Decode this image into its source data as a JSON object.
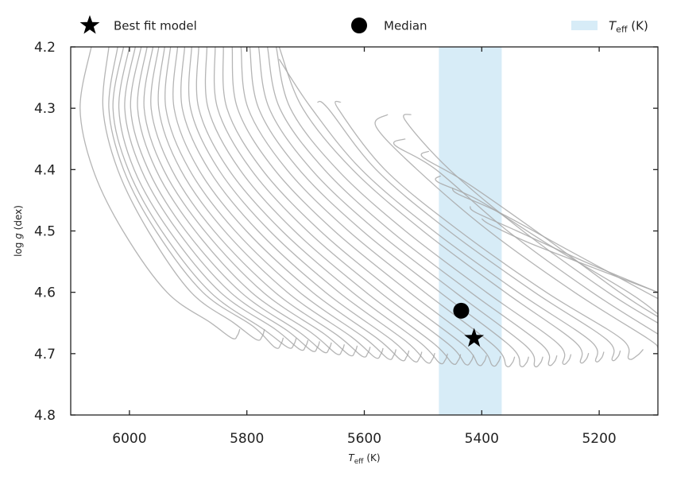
{
  "chart_data": {
    "type": "line",
    "xlabel_base": "T",
    "xlabel_sub": "eff",
    "xlabel_unit": "(K)",
    "ylabel": "log g (dex)",
    "ylabel_pre": "log ",
    "ylabel_var": "g",
    "ylabel_unit": " (dex)",
    "xlim": [
      6100,
      5100
    ],
    "ylim": [
      4.8,
      4.2
    ],
    "x_ticks": [
      6000,
      5800,
      5600,
      5400,
      5200
    ],
    "y_ticks": [
      4.2,
      4.3,
      4.4,
      4.5,
      4.6,
      4.7,
      4.8
    ],
    "x_tick_labels": [
      "6000",
      "5800",
      "5600",
      "5400",
      "5200"
    ],
    "y_tick_labels": [
      "4.2",
      "4.3",
      "4.4",
      "4.5",
      "4.6",
      "4.7",
      "4.8"
    ],
    "teff_band": [
      5473,
      5366
    ],
    "best_fit": {
      "x": 5413,
      "y": 4.675
    },
    "median": {
      "x": 5435,
      "y": 4.63
    },
    "legend": {
      "best_fit_label": "Best fit model",
      "median_label": "Median",
      "band_label_base": "T",
      "band_label_sub": "eff",
      "band_label_unit": "(K)",
      "placement": "top"
    },
    "tracks": [
      {
        "x": [
          6065,
          6084,
          6062,
          6011,
          5936,
          5861,
          5825,
          5816,
          5812
        ],
        "y": [
          4.2,
          4.3,
          4.4,
          4.5,
          4.6,
          4.65,
          4.675,
          4.67,
          4.66
        ]
      },
      {
        "x": [
          6035,
          6045,
          6020,
          5968,
          5895,
          5822,
          5784,
          5774,
          5770
        ],
        "y": [
          4.2,
          4.3,
          4.4,
          4.5,
          4.6,
          4.65,
          4.677,
          4.672,
          4.66
        ]
      },
      {
        "x": [
          6020,
          6035,
          6010,
          5955,
          5875,
          5790,
          5752,
          5742,
          5738
        ],
        "y": [
          4.2,
          4.3,
          4.4,
          4.5,
          4.6,
          4.655,
          4.69,
          4.684,
          4.674
        ]
      },
      {
        "x": [
          6010,
          6028,
          6002,
          5945,
          5862,
          5772,
          5730,
          5720,
          5716
        ],
        "y": [
          4.2,
          4.3,
          4.4,
          4.5,
          4.6,
          4.66,
          4.69,
          4.685,
          4.675
        ]
      },
      {
        "x": [
          6000,
          6018,
          5992,
          5932,
          5845,
          5752,
          5710,
          5700,
          5696
        ],
        "y": [
          4.2,
          4.3,
          4.4,
          4.5,
          4.6,
          4.66,
          4.693,
          4.688,
          4.678
        ]
      },
      {
        "x": [
          5990,
          6008,
          5980,
          5918,
          5828,
          5732,
          5690,
          5680,
          5676
        ],
        "y": [
          4.2,
          4.3,
          4.4,
          4.5,
          4.6,
          4.662,
          4.695,
          4.69,
          4.68
        ]
      },
      {
        "x": [
          5980,
          5998,
          5968,
          5904,
          5810,
          5712,
          5670,
          5660,
          5656
        ],
        "y": [
          4.2,
          4.3,
          4.4,
          4.5,
          4.6,
          4.664,
          4.697,
          4.692,
          4.682
        ]
      },
      {
        "x": [
          5970,
          5986,
          5955,
          5888,
          5792,
          5690,
          5648,
          5638,
          5634
        ],
        "y": [
          4.2,
          4.3,
          4.4,
          4.5,
          4.6,
          4.666,
          4.7,
          4.695,
          4.685
        ]
      },
      {
        "x": [
          5960,
          5975,
          5942,
          5872,
          5772,
          5668,
          5626,
          5616,
          5612
        ],
        "y": [
          4.2,
          4.3,
          4.4,
          4.5,
          4.6,
          4.668,
          4.702,
          4.697,
          4.687
        ]
      },
      {
        "x": [
          5950,
          5963,
          5928,
          5856,
          5752,
          5646,
          5604,
          5594,
          5590
        ],
        "y": [
          4.2,
          4.3,
          4.4,
          4.5,
          4.6,
          4.67,
          4.704,
          4.699,
          4.689
        ]
      },
      {
        "x": [
          5940,
          5950,
          5913,
          5838,
          5731,
          5623,
          5582,
          5572,
          5568
        ],
        "y": [
          4.2,
          4.3,
          4.4,
          4.5,
          4.6,
          4.672,
          4.706,
          4.701,
          4.691
        ]
      },
      {
        "x": [
          5930,
          5938,
          5898,
          5820,
          5710,
          5600,
          5560,
          5550,
          5546
        ],
        "y": [
          4.2,
          4.3,
          4.4,
          4.5,
          4.6,
          4.674,
          4.708,
          4.703,
          4.693
        ]
      },
      {
        "x": [
          5918,
          5924,
          5882,
          5801,
          5688,
          5577,
          5538,
          5528,
          5524
        ],
        "y": [
          4.2,
          4.3,
          4.4,
          4.5,
          4.6,
          4.676,
          4.71,
          4.705,
          4.695
        ]
      },
      {
        "x": [
          5906,
          5910,
          5865,
          5781,
          5666,
          5553,
          5516,
          5506,
          5502
        ],
        "y": [
          4.2,
          4.3,
          4.4,
          4.5,
          4.6,
          4.678,
          4.712,
          4.707,
          4.697
        ]
      },
      {
        "x": [
          5894,
          5896,
          5848,
          5761,
          5643,
          5529,
          5494,
          5484,
          5480
        ],
        "y": [
          4.2,
          4.3,
          4.4,
          4.5,
          4.6,
          4.68,
          4.714,
          4.709,
          4.699
        ]
      },
      {
        "x": [
          5882,
          5882,
          5831,
          5740,
          5620,
          5505,
          5472,
          5462,
          5458
        ],
        "y": [
          4.2,
          4.3,
          4.4,
          4.5,
          4.6,
          4.682,
          4.715,
          4.71,
          4.7
        ]
      },
      {
        "x": [
          5868,
          5866,
          5812,
          5719,
          5597,
          5481,
          5450,
          5440,
          5436
        ],
        "y": [
          4.2,
          4.3,
          4.4,
          4.5,
          4.6,
          4.684,
          4.716,
          4.711,
          4.701
        ]
      },
      {
        "x": [
          5854,
          5850,
          5793,
          5697,
          5573,
          5456,
          5428,
          5418,
          5414
        ],
        "y": [
          4.2,
          4.3,
          4.4,
          4.5,
          4.6,
          4.685,
          4.717,
          4.712,
          4.702
        ]
      },
      {
        "x": [
          5840,
          5834,
          5774,
          5675,
          5549,
          5431,
          5406,
          5396,
          5392
        ],
        "y": [
          4.2,
          4.3,
          4.4,
          4.5,
          4.6,
          4.686,
          4.718,
          4.713,
          4.703
        ]
      },
      {
        "x": [
          5825,
          5816,
          5753,
          5651,
          5523,
          5405,
          5382,
          5372,
          5368
        ],
        "y": [
          4.2,
          4.3,
          4.4,
          4.5,
          4.6,
          4.687,
          4.719,
          4.714,
          4.704
        ]
      },
      {
        "x": [
          5810,
          5798,
          5732,
          5627,
          5497,
          5378,
          5358,
          5348,
          5344
        ],
        "y": [
          4.2,
          4.3,
          4.4,
          4.5,
          4.6,
          4.688,
          4.72,
          4.715,
          4.705
        ]
      },
      {
        "x": [
          5795,
          5780,
          5711,
          5603,
          5471,
          5351,
          5334,
          5324,
          5320
        ],
        "y": [
          4.2,
          4.3,
          4.4,
          4.5,
          4.6,
          4.688,
          4.72,
          4.715,
          4.705
        ]
      },
      {
        "x": [
          5780,
          5762,
          5690,
          5579,
          5445,
          5324,
          5310,
          5300,
          5296
        ],
        "y": [
          4.2,
          4.3,
          4.4,
          4.5,
          4.6,
          4.688,
          4.72,
          4.715,
          4.705
        ]
      },
      {
        "x": [
          5765,
          5744,
          5668,
          5555,
          5419,
          5297,
          5286,
          5276,
          5272
        ],
        "y": [
          4.2,
          4.3,
          4.4,
          4.5,
          4.6,
          4.686,
          4.718,
          4.713,
          4.703
        ]
      },
      {
        "x": [
          5750,
          5726,
          5646,
          5530,
          5392,
          5270,
          5262,
          5252,
          5248
        ],
        "y": [
          4.2,
          4.3,
          4.4,
          4.5,
          4.6,
          4.684,
          4.716,
          4.711,
          4.701
        ]
      },
      {
        "x": [
          5745,
          5705,
          5620,
          5500,
          5360,
          5240,
          5232,
          5222,
          5218
        ],
        "y": [
          4.2,
          4.3,
          4.4,
          4.5,
          4.6,
          4.682,
          4.714,
          4.709,
          4.699
        ]
      },
      {
        "x": [
          5745,
          5690,
          5605,
          5482,
          5338,
          5214,
          5206,
          5196,
          5192
        ],
        "y": [
          4.22,
          4.3,
          4.4,
          4.5,
          4.6,
          4.68,
          4.712,
          4.707,
          4.697
        ]
      },
      {
        "x": [
          5680,
          5662,
          5580,
          5456,
          5310,
          5186,
          5178,
          5168,
          5164
        ],
        "y": [
          4.29,
          4.3,
          4.4,
          4.5,
          4.6,
          4.678,
          4.71,
          4.705,
          4.695
        ]
      },
      {
        "x": [
          5640,
          5645,
          5565,
          5438,
          5290,
          5162,
          5150,
          5135,
          5125
        ],
        "y": [
          4.29,
          4.3,
          4.4,
          4.5,
          4.6,
          4.676,
          4.708,
          4.703,
          4.693
        ]
      },
      {
        "x": [
          5560,
          5580,
          5510,
          5388,
          5242,
          5118,
          5100
        ],
        "y": [
          4.31,
          4.33,
          4.4,
          4.5,
          4.6,
          4.675,
          4.69
        ]
      },
      {
        "x": [
          5530,
          5548,
          5478,
          5356,
          5212,
          5100
        ],
        "y": [
          4.35,
          4.36,
          4.4,
          4.5,
          4.6,
          4.668
        ]
      },
      {
        "x": [
          5520,
          5530,
          5455,
          5330,
          5185,
          5100
        ],
        "y": [
          4.31,
          4.32,
          4.4,
          4.5,
          4.6,
          4.65
        ]
      },
      {
        "x": [
          5490,
          5500,
          5428,
          5308,
          5165,
          5100
        ],
        "y": [
          4.37,
          4.38,
          4.42,
          4.5,
          4.6,
          4.64
        ]
      },
      {
        "x": [
          5470,
          5475,
          5405,
          5290,
          5150,
          5100
        ],
        "y": [
          4.41,
          4.42,
          4.45,
          4.52,
          4.6,
          4.635
        ]
      },
      {
        "x": [
          5450,
          5440,
          5370,
          5255,
          5120,
          5100
        ],
        "y": [
          4.43,
          4.44,
          4.47,
          4.53,
          4.6,
          4.61
        ]
      },
      {
        "x": [
          5420,
          5410,
          5340,
          5225,
          5100
        ],
        "y": [
          4.46,
          4.47,
          4.5,
          4.55,
          4.6
        ]
      },
      {
        "x": [
          5400,
          5385,
          5318,
          5210,
          5100
        ],
        "y": [
          4.48,
          4.49,
          4.52,
          4.56,
          4.6
        ]
      }
    ]
  }
}
